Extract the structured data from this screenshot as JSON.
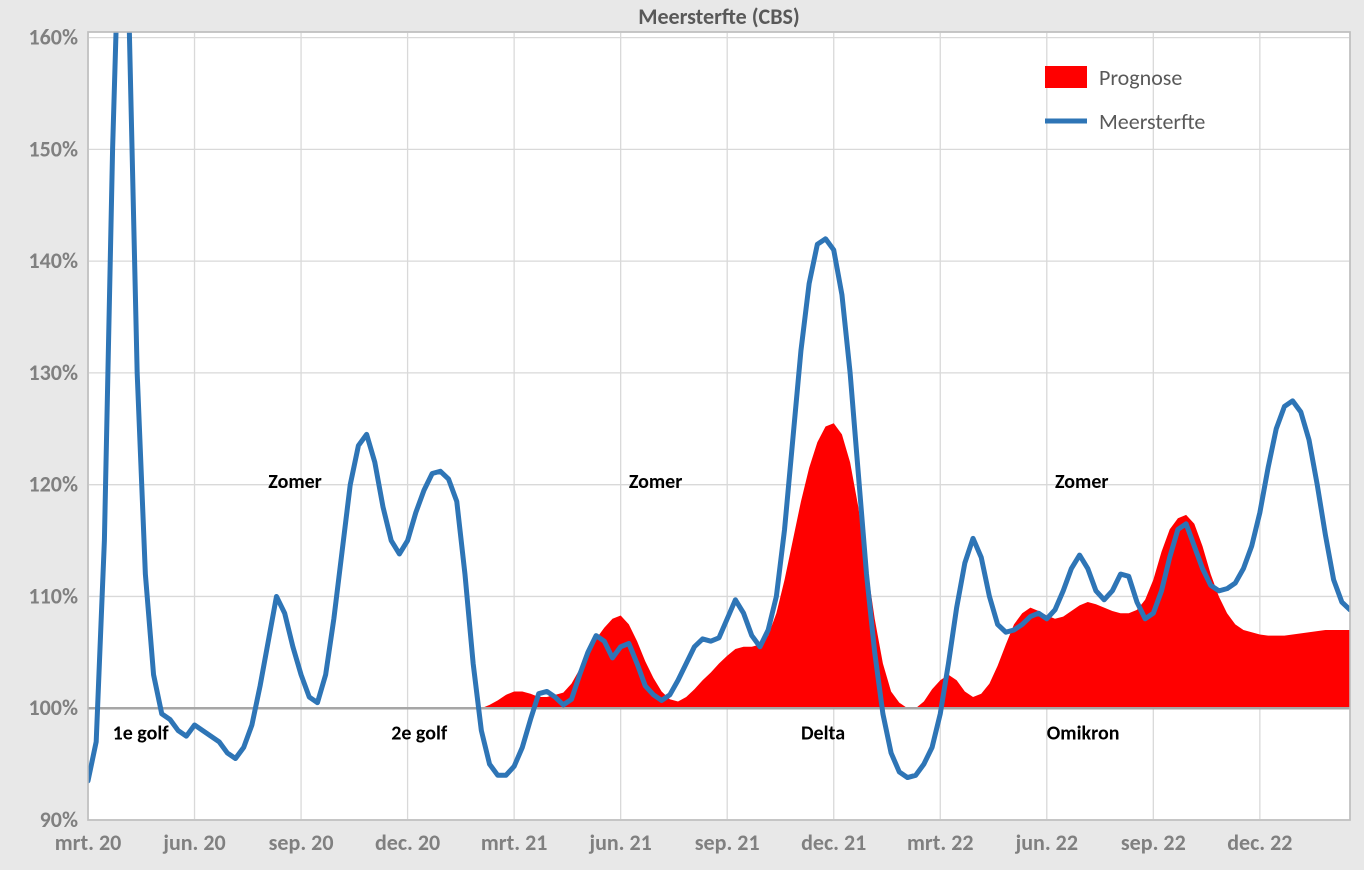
{
  "chart": {
    "type": "line+area",
    "title": "Meersterfte (CBS)",
    "title_fontsize": 22,
    "background_color_outer": "#e8e8e8",
    "background_color_plot": "#ffffff",
    "grid_color": "#d9d9d9",
    "axis_label_color": "#808080",
    "axis_label_fontsize": 22,
    "annot_fontsize": 20,
    "annot_weight": "bold",
    "baseline_color": "#a6a6a6",
    "baseline_width": 2.5,
    "plot_border_color": "#bfbfbf",
    "plot_border_width": 1.5,
    "yaxis": {
      "min": 90,
      "max": 160.5,
      "ticks": [
        90,
        100,
        110,
        120,
        130,
        140,
        150,
        160
      ],
      "tick_labels": [
        "90%",
        "100%",
        "110%",
        "120%",
        "130%",
        "140%",
        "150%",
        "160%"
      ],
      "format": "percent"
    },
    "xaxis": {
      "tick_indices": [
        0,
        13,
        26,
        39,
        52,
        65,
        78,
        91,
        104,
        117,
        130,
        143
      ],
      "tick_labels": [
        "mrt. 20",
        "jun. 20",
        "sep. 20",
        "dec. 20",
        "mrt. 21",
        "jun. 21",
        "sep. 21",
        "dec. 21",
        "mrt. 22",
        "jun. 22",
        "sep. 22",
        "dec. 22"
      ]
    },
    "n_points": 155,
    "legend": {
      "position": "top-right",
      "bg": "#ffffff",
      "items": [
        {
          "type": "area",
          "label": "Prognose",
          "color": "#ff0000"
        },
        {
          "type": "line",
          "label": "Meersterfte",
          "color": "#2e75b6"
        }
      ],
      "fontsize": 22
    },
    "series_line": {
      "name": "Meersterfte",
      "color": "#2e75b6",
      "width": 5,
      "values": [
        93.5,
        97.0,
        115.0,
        150.0,
        175.0,
        162.0,
        130.0,
        112.0,
        103.0,
        99.5,
        99.0,
        98.0,
        97.5,
        98.5,
        98.0,
        97.5,
        97.0,
        96.0,
        95.5,
        96.5,
        98.5,
        102.0,
        106.0,
        110.0,
        108.5,
        105.5,
        103.0,
        101.0,
        100.5,
        103.0,
        108.0,
        114.0,
        120.0,
        123.5,
        124.5,
        122.0,
        118.0,
        115.0,
        113.8,
        115.0,
        117.5,
        119.5,
        121.0,
        121.2,
        120.5,
        118.5,
        112.0,
        104.0,
        98.0,
        95.0,
        94.0,
        94.0,
        94.8,
        96.5,
        99.0,
        101.3,
        101.5,
        101.0,
        100.3,
        100.8,
        103.0,
        105.0,
        106.5,
        106.0,
        104.5,
        105.5,
        105.8,
        104.0,
        102.0,
        101.2,
        100.7,
        101.2,
        102.5,
        104.0,
        105.5,
        106.2,
        106.0,
        106.3,
        108.0,
        109.7,
        108.5,
        106.5,
        105.5,
        107.0,
        110.0,
        116.0,
        124.0,
        132.0,
        138.0,
        141.5,
        142.0,
        141.0,
        137.0,
        130.0,
        121.0,
        112.0,
        105.0,
        99.5,
        96.0,
        94.3,
        93.8,
        94.0,
        95.0,
        96.5,
        99.5,
        104.0,
        109.0,
        113.0,
        115.2,
        113.5,
        110.0,
        107.5,
        106.8,
        107.0,
        107.5,
        108.2,
        108.5,
        108.0,
        108.8,
        110.5,
        112.5,
        113.7,
        112.5,
        110.5,
        109.7,
        110.5,
        112.0,
        111.8,
        109.5,
        108.0,
        108.5,
        110.5,
        113.5,
        116.0,
        116.5,
        114.5,
        112.5,
        111.0,
        110.5,
        110.7,
        111.2,
        112.5,
        114.5,
        117.5,
        121.5,
        125.0,
        127.0,
        127.5,
        126.5,
        124.0,
        120.0,
        115.5,
        111.5,
        109.5,
        108.8
      ]
    },
    "series_area": {
      "name": "Prognose",
      "color": "#ff0000",
      "baseline": 100,
      "values": [
        100,
        100,
        100,
        100,
        100,
        100,
        100,
        100,
        100,
        100,
        100,
        100,
        100,
        100,
        100,
        100,
        100,
        100,
        100,
        100,
        100,
        100,
        100,
        100,
        100,
        100,
        100,
        100,
        100,
        100,
        100,
        100,
        100,
        100,
        100,
        100,
        100,
        100,
        100,
        100,
        100,
        100,
        100,
        100,
        100,
        99.7,
        99.7,
        99.8,
        100.0,
        100.3,
        100.7,
        101.2,
        101.5,
        101.5,
        101.3,
        101.0,
        101.0,
        101.2,
        101.4,
        102.2,
        103.5,
        105.0,
        106.2,
        107.2,
        108.0,
        108.3,
        107.5,
        106.0,
        104.2,
        102.7,
        101.5,
        100.8,
        100.6,
        101.0,
        101.7,
        102.5,
        103.2,
        104.0,
        104.7,
        105.3,
        105.5,
        105.5,
        105.7,
        106.5,
        108.5,
        111.5,
        115.0,
        118.5,
        121.5,
        123.8,
        125.2,
        125.5,
        124.5,
        122.0,
        118.0,
        113.0,
        108.0,
        104.0,
        101.5,
        100.5,
        100.0,
        100.0,
        100.6,
        101.7,
        102.5,
        103.0,
        102.5,
        101.5,
        101.0,
        101.3,
        102.2,
        103.8,
        105.7,
        107.5,
        108.5,
        109.0,
        108.7,
        108.3,
        108.0,
        108.2,
        108.7,
        109.2,
        109.5,
        109.3,
        109.0,
        108.7,
        108.5,
        108.5,
        108.8,
        109.7,
        111.5,
        114.0,
        116.0,
        117.0,
        117.3,
        116.5,
        114.5,
        112.0,
        110.0,
        108.5,
        107.5,
        107.0,
        106.8,
        106.6,
        106.5,
        106.5,
        106.5,
        106.6,
        106.7,
        106.8,
        106.9,
        107.0,
        107.0,
        107.0,
        107.0
      ]
    },
    "annotations": [
      {
        "text": "Zomer",
        "x_index": 22,
        "y_val": 119.7,
        "anchor": "start"
      },
      {
        "text": "Zomer",
        "x_index": 66,
        "y_val": 119.7,
        "anchor": "start"
      },
      {
        "text": "Zomer",
        "x_index": 118,
        "y_val": 119.7,
        "anchor": "start"
      },
      {
        "text": "1e golf",
        "x_index": 3,
        "y_val": 97.2,
        "anchor": "start"
      },
      {
        "text": "2e golf",
        "x_index": 37,
        "y_val": 97.2,
        "anchor": "start"
      },
      {
        "text": "Delta",
        "x_index": 87,
        "y_val": 97.2,
        "anchor": "start"
      },
      {
        "text": "Omikron",
        "x_index": 117,
        "y_val": 97.2,
        "anchor": "start"
      }
    ]
  }
}
